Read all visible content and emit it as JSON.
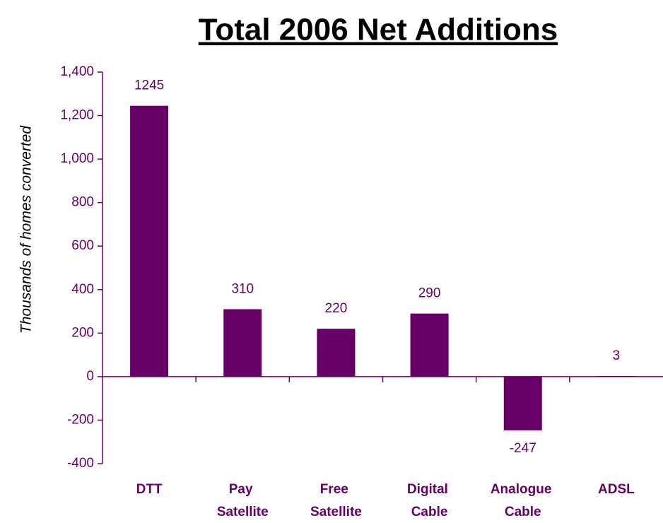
{
  "chart_data": {
    "type": "bar",
    "title": "Total 2006 Net Additions",
    "y_label": "Thousands of homes converted",
    "categories": [
      "DTT",
      "Pay Satellite",
      "Free Satellite",
      "Digital Cable",
      "Analogue Cable",
      "ADSL"
    ],
    "values": [
      1245,
      310,
      220,
      290,
      -247,
      3
    ],
    "color": "#660066",
    "ylim": [
      -400,
      1400
    ],
    "yticks": [
      -400,
      -200,
      0,
      200,
      400,
      600,
      800,
      {
        "value": 1000,
        "label": "1,000"
      },
      {
        "value": 1200,
        "label": "1,200"
      },
      {
        "value": 1400,
        "label": "1,400"
      }
    ],
    "grid": false
  }
}
